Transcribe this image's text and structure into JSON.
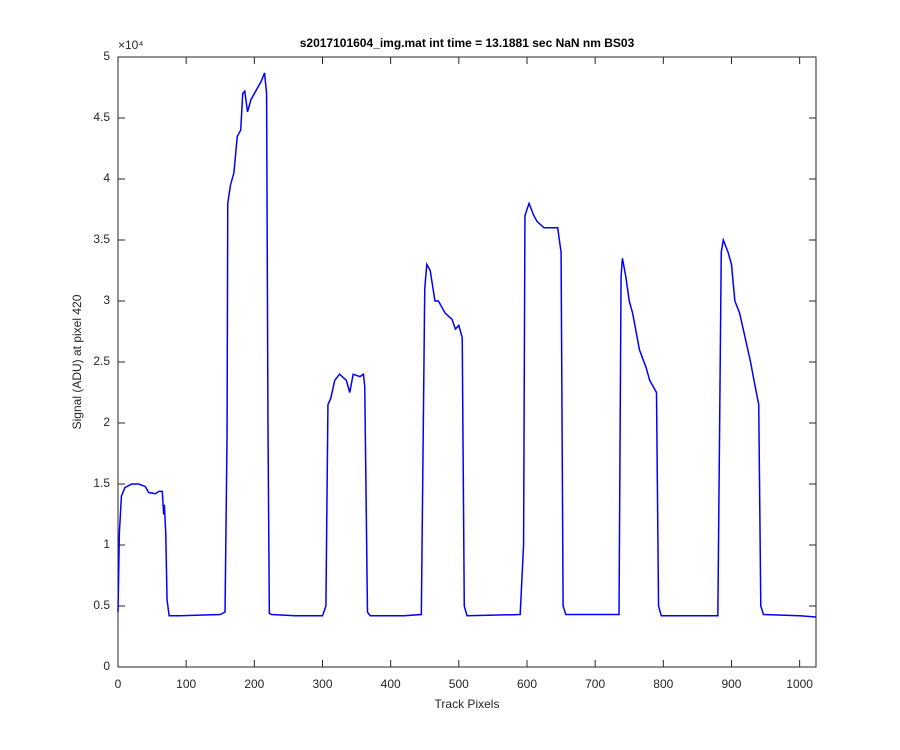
{
  "chart_data": {
    "type": "line",
    "title": "s2017101604_img.mat int time = 13.1881 sec  NaN nm BS03",
    "x_label": "Track Pixels",
    "y_label": "Signal (ADU) at pixel 420",
    "y_exponent": "×10⁴",
    "x": [
      0,
      2,
      5,
      10,
      20,
      30,
      40,
      45,
      55,
      60,
      65,
      67,
      68,
      70,
      72,
      75,
      90,
      120,
      150,
      157,
      160,
      161,
      165,
      170,
      175,
      180,
      183,
      186,
      190,
      195,
      200,
      205,
      210,
      215,
      218,
      220,
      222,
      225,
      260,
      300,
      305,
      308,
      312,
      318,
      325,
      335,
      340,
      345,
      355,
      360,
      362,
      366,
      370,
      420,
      445,
      450,
      453,
      458,
      465,
      470,
      480,
      490,
      495,
      500,
      505,
      508,
      512,
      590,
      595,
      597,
      603,
      610,
      615,
      625,
      635,
      645,
      650,
      653,
      657,
      735,
      738,
      740,
      745,
      750,
      755,
      765,
      775,
      780,
      785,
      790,
      793,
      797,
      880,
      885,
      888,
      895,
      900,
      905,
      912,
      920,
      928,
      933,
      940,
      943,
      947,
      1000,
      1024
    ],
    "series": [
      {
        "color": "#0000ff",
        "values": [
          0.45,
          1.1,
          1.4,
          1.47,
          1.5,
          1.5,
          1.48,
          1.43,
          1.42,
          1.44,
          1.44,
          1.25,
          1.33,
          1.1,
          0.55,
          0.42,
          0.42,
          0.425,
          0.43,
          0.45,
          1.9,
          3.8,
          3.95,
          4.05,
          4.35,
          4.4,
          4.7,
          4.72,
          4.55,
          4.65,
          4.7,
          4.75,
          4.8,
          4.87,
          4.7,
          2.0,
          0.44,
          0.43,
          0.42,
          0.42,
          0.5,
          2.15,
          2.2,
          2.35,
          2.4,
          2.35,
          2.25,
          2.4,
          2.38,
          2.4,
          2.3,
          0.45,
          0.42,
          0.42,
          0.43,
          3.1,
          3.3,
          3.25,
          3.0,
          3.0,
          2.9,
          2.85,
          2.77,
          2.8,
          2.7,
          0.5,
          0.42,
          0.43,
          1.0,
          3.7,
          3.8,
          3.7,
          3.65,
          3.6,
          3.6,
          3.6,
          3.4,
          0.5,
          0.43,
          0.43,
          3.2,
          3.35,
          3.2,
          3.0,
          2.9,
          2.6,
          2.45,
          2.35,
          2.3,
          2.25,
          0.5,
          0.42,
          0.42,
          3.4,
          3.5,
          3.4,
          3.3,
          3.0,
          2.9,
          2.7,
          2.5,
          2.35,
          2.15,
          0.5,
          0.43,
          0.42,
          0.41
        ]
      }
    ],
    "xlim": [
      0,
      1024
    ],
    "ylim": [
      0,
      5
    ],
    "xticks": [
      0,
      100,
      200,
      300,
      400,
      500,
      600,
      700,
      800,
      900,
      1000
    ],
    "yticks": [
      0,
      0.5,
      1,
      1.5,
      2,
      2.5,
      3,
      3.5,
      4,
      4.5,
      5
    ]
  }
}
